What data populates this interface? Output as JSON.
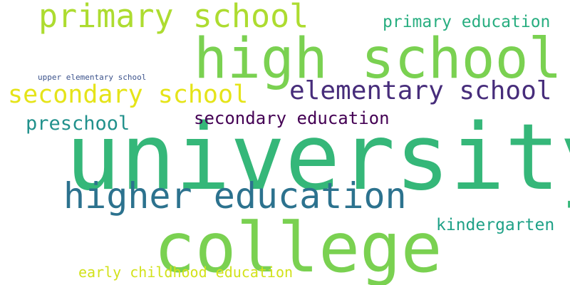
{
  "words": [
    {
      "text": "university",
      "color": "#35b779"
    },
    {
      "text": "high school",
      "color": "#7ad151"
    },
    {
      "text": "college",
      "color": "#7ad151"
    },
    {
      "text": "higher education",
      "color": "#2c728e"
    },
    {
      "text": "primary school",
      "color": "#addc30"
    },
    {
      "text": "elementary school",
      "color": "#472d7b"
    },
    {
      "text": "secondary school",
      "color": "#e5e419"
    },
    {
      "text": "secondary education",
      "color": "#440154"
    },
    {
      "text": "preschool",
      "color": "#21918c"
    },
    {
      "text": "primary education",
      "color": "#28ae80"
    },
    {
      "text": "kindergarten",
      "color": "#1fa187"
    },
    {
      "text": "early childhood education",
      "color": "#d2e21b"
    },
    {
      "text": "upper elementary school",
      "color": "#3b528b"
    }
  ]
}
